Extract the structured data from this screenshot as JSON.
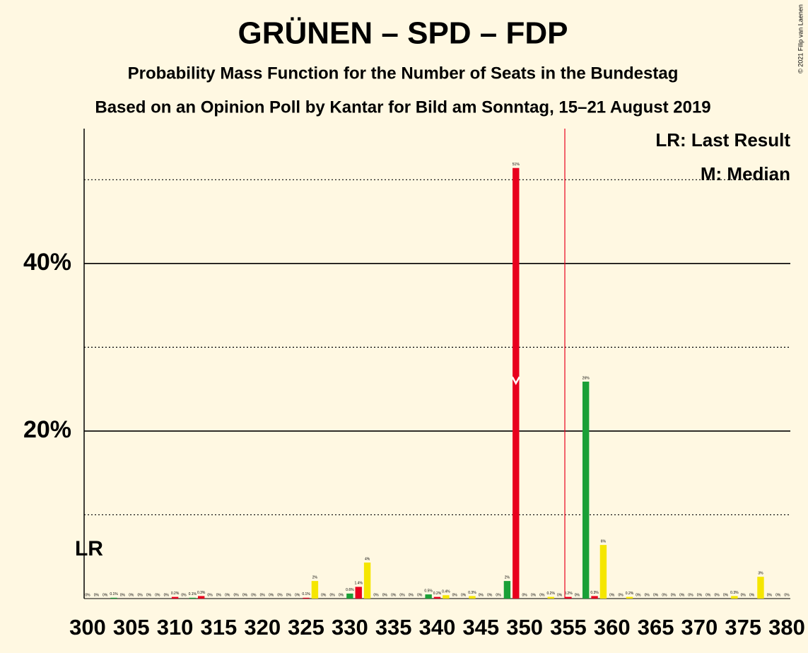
{
  "chart_data": {
    "type": "bar",
    "title": "GRÜNEN – SPD – FDP",
    "subtitle": "Probability Mass Function for the Number of Seats in the Bundestag",
    "subtitle2": "Based on an Opinion Poll by Kantar for Bild am Sonntag, 15–21 August 2019",
    "legend": [
      "LR: Last Result",
      "M: Median"
    ],
    "last_result_label": "LR",
    "copyright": "© 2021 Filip van Laenen",
    "colors": [
      "#1aa037",
      "#e8001e",
      "#f5e600"
    ],
    "x": [
      300,
      301,
      302,
      303,
      304,
      305,
      306,
      307,
      308,
      309,
      310,
      311,
      312,
      313,
      314,
      315,
      316,
      317,
      318,
      319,
      320,
      321,
      322,
      323,
      324,
      325,
      326,
      327,
      328,
      329,
      330,
      331,
      332,
      333,
      334,
      335,
      336,
      337,
      338,
      339,
      340,
      341,
      342,
      343,
      344,
      345,
      346,
      347,
      348,
      349,
      350,
      351,
      352,
      353,
      354,
      355,
      356,
      357,
      358,
      359,
      360,
      361,
      362,
      363,
      364,
      365,
      366,
      367,
      368,
      369,
      370,
      371,
      372,
      373,
      374,
      375,
      376,
      377,
      378,
      379,
      380
    ],
    "values": [
      0,
      0,
      0,
      0.1,
      0,
      0,
      0,
      0,
      0,
      0,
      0.2,
      0,
      0.1,
      0.3,
      0,
      0,
      0,
      0,
      0,
      0,
      0,
      0,
      0,
      0,
      0,
      0.1,
      2.1,
      0,
      0,
      0,
      0.6,
      1.4,
      4.3,
      0,
      0,
      0,
      0,
      0,
      0,
      0.5,
      0.2,
      0.4,
      0,
      0,
      0.3,
      0,
      0,
      0,
      2.1,
      51.4,
      0,
      0,
      0,
      0.2,
      0,
      0.2,
      0,
      25.9,
      0.3,
      6.4,
      0,
      0,
      0.2,
      0,
      0,
      0,
      0,
      0,
      0,
      0,
      0,
      0,
      0,
      0,
      0.3,
      0,
      0,
      2.6,
      0,
      0,
      0
    ],
    "value_labels": [
      "0%",
      "0%",
      "0%",
      "0.1%",
      "0%",
      "0%",
      "0%",
      "0%",
      "0%",
      "0%",
      "0.2%",
      "0%",
      "0.1%",
      "0.3%",
      "0%",
      "0%",
      "0%",
      "0%",
      "0%",
      "0%",
      "0%",
      "0%",
      "0%",
      "0%",
      "0%",
      "0.1%",
      "2%",
      "0%",
      "0%",
      "0%",
      "0.6%",
      "1.4%",
      "4%",
      "0%",
      "0%",
      "0%",
      "0%",
      "0%",
      "0%",
      "0.5%",
      "0.2%",
      "0.4%",
      "0%",
      "0%",
      "0.3%",
      "0%",
      "0%",
      "0%",
      "2%",
      "51%",
      "0%",
      "0%",
      "0%",
      "0.2%",
      "0%",
      "0.2%",
      "0%",
      "26%",
      "0.3%",
      "6%",
      "0%",
      "0%",
      "0.2%",
      "0%",
      "0%",
      "0%",
      "0%",
      "0%",
      "0%",
      "0%",
      "0%",
      "0%",
      "0%",
      "0%",
      "0.3%",
      "0%",
      "0%",
      "3%",
      "0%",
      "0%",
      "0%"
    ],
    "xlim": [
      299.6,
      380.4
    ],
    "xticks": [
      300,
      305,
      310,
      315,
      320,
      325,
      330,
      335,
      340,
      345,
      350,
      355,
      360,
      365,
      370,
      375,
      380
    ],
    "ylim": [
      0,
      56.1
    ],
    "yticks": [
      {
        "value": 20,
        "label": "20%"
      },
      {
        "value": 40,
        "label": "40%"
      }
    ],
    "y_minor_ticks": [
      10,
      30,
      50
    ],
    "last_result": 300,
    "median": 349,
    "majority_line": 354.6
  }
}
